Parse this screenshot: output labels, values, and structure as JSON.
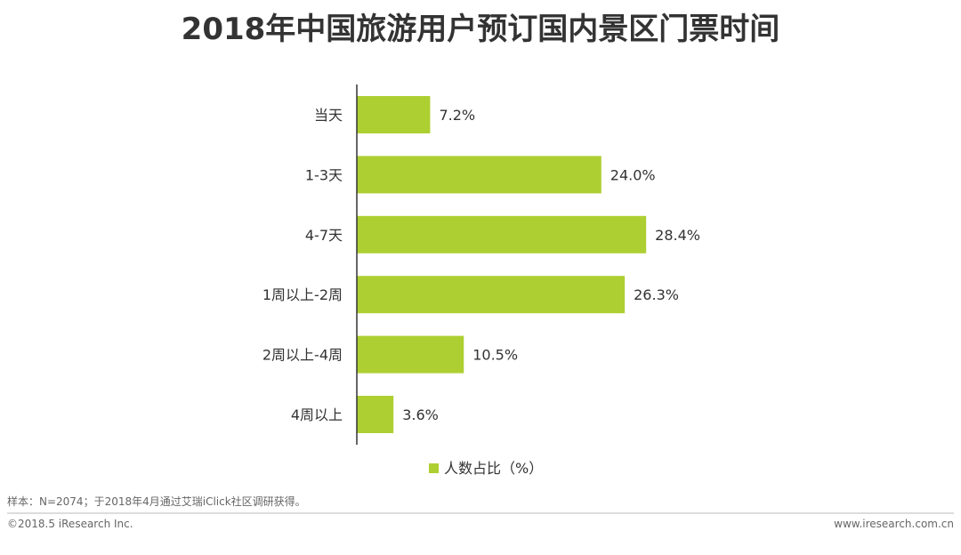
{
  "chart_data": {
    "type": "bar",
    "orientation": "horizontal",
    "title": "2018年中国旅游用户预订国内景区门票时间",
    "categories": [
      "当天",
      "1-3天",
      "4-7天",
      "1周以上-2周",
      "2周以上-4周",
      "4周以上"
    ],
    "values": [
      7.2,
      24.0,
      28.4,
      26.3,
      10.5,
      3.6
    ],
    "value_labels": [
      "7.2%",
      "24.0%",
      "28.4%",
      "26.3%",
      "10.5%",
      "3.6%"
    ],
    "xlim": [
      0,
      30
    ],
    "series": [
      {
        "name": "人数占比（%）",
        "values": [
          7.2,
          24.0,
          28.4,
          26.3,
          10.5,
          3.6
        ]
      }
    ],
    "legend": {
      "label": "人数占比（%）",
      "position": "bottom"
    },
    "grid": false
  },
  "colors": {
    "bar": "#AECF32",
    "axis": "#333333",
    "title": "#333333",
    "rule": "#BBBBBB"
  },
  "footer": {
    "sample_note": "样本：N=2074；于2018年4月通过艾瑞iClick社区调研获得。",
    "copyright": "©2018.5 iResearch Inc.",
    "website": "www.iresearch.com.cn"
  }
}
